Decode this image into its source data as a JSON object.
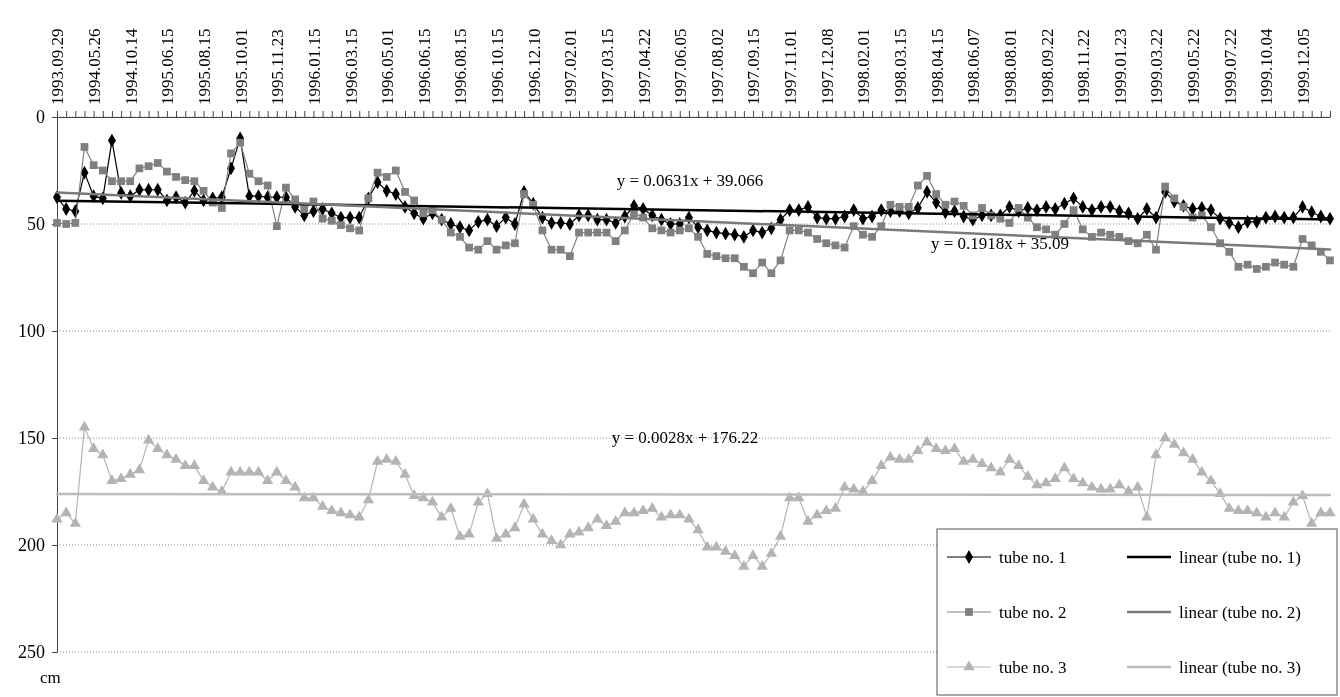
{
  "chart_data": {
    "type": "line",
    "ylabel": "cm",
    "ylim": [
      250,
      0
    ],
    "yticks": [
      0,
      50,
      100,
      150,
      200,
      250
    ],
    "grid": "y",
    "legend": "bottom right",
    "categories": [
      "1993.09.29",
      null,
      null,
      null,
      "1994.05.26",
      null,
      null,
      null,
      "1994.10.14",
      null,
      null,
      null,
      "1995.06.15",
      null,
      null,
      null,
      "1995.08.15",
      null,
      null,
      null,
      "1995.10.01",
      null,
      null,
      null,
      "1995.11.23",
      null,
      null,
      null,
      "1996.01.15",
      null,
      null,
      null,
      "1996.03.15",
      null,
      null,
      null,
      "1996.05.01",
      null,
      null,
      null,
      "1996.06.15",
      null,
      null,
      null,
      "1996.08.15",
      null,
      null,
      null,
      "1996.10.15",
      null,
      null,
      null,
      "1996.12.10",
      null,
      null,
      null,
      "1997.02.01",
      null,
      null,
      null,
      "1997.03.15",
      null,
      null,
      null,
      "1997.04.22",
      null,
      null,
      null,
      "1997.06.05",
      null,
      null,
      null,
      "1997.08.02",
      null,
      null,
      null,
      "1997.09.15",
      null,
      null,
      null,
      "1997.11.01",
      null,
      null,
      null,
      "1997.12.08",
      null,
      null,
      null,
      "1998.02.01",
      null,
      null,
      null,
      "1998.03.15",
      null,
      null,
      null,
      "1998.04.15",
      null,
      null,
      null,
      "1998.06.07",
      null,
      null,
      null,
      "1998.08.01",
      null,
      null,
      null,
      "1998.09.22",
      null,
      null,
      null,
      "1998.11.22",
      null,
      null,
      null,
      "1999.01.23",
      null,
      null,
      null,
      "1999.03.22",
      null,
      null,
      null,
      "1999.05.22",
      null,
      null,
      null,
      "1999.07.22",
      null,
      null,
      null,
      "1999.10.04",
      null,
      null,
      null,
      "1999.12.05",
      null,
      null,
      null
    ],
    "series": [
      {
        "name": "tube no. 1",
        "color": "#000000",
        "marker": "diamond",
        "line_style": "solid",
        "values": [
          37.5,
          43,
          44,
          26,
          37,
          38,
          11,
          35.5,
          37,
          34,
          34,
          34,
          39,
          37.5,
          40,
          34.5,
          39,
          38,
          37.5,
          24,
          10,
          37,
          37,
          37.5,
          37.5,
          37.5,
          42,
          46,
          44,
          43,
          45,
          47,
          47,
          47,
          38,
          30.5,
          34.5,
          36,
          42,
          45,
          47.5,
          45,
          48,
          50,
          51.5,
          53,
          49,
          48,
          51,
          47,
          50,
          35,
          40.5,
          47,
          49.5,
          49.5,
          50,
          46,
          46,
          48,
          48,
          49.5,
          46.5,
          41.5,
          43,
          46,
          48,
          50,
          50,
          47,
          51.5,
          53,
          54,
          54.5,
          55,
          56,
          53,
          54,
          52,
          48,
          43.5,
          43.5,
          42,
          47,
          47.5,
          47.5,
          46.5,
          43.5,
          47.5,
          46.5,
          43.5,
          44,
          44,
          45,
          42.5,
          35,
          40,
          44.5,
          44,
          46.5,
          48,
          46,
          46,
          46,
          42,
          44,
          42.5,
          43.5,
          42,
          43,
          40.5,
          38,
          42,
          43.5,
          42,
          42,
          44,
          45,
          47.5,
          43,
          47,
          35,
          39.5,
          41.5,
          43,
          42.5,
          43.5,
          47.5,
          49.5,
          51.5,
          49,
          49,
          47,
          46.5,
          47,
          47,
          42,
          44.5,
          46.5,
          47.5
        ]
      },
      {
        "name": "tube no. 2",
        "color": "#808080",
        "marker": "square",
        "line_style": "solid",
        "values": [
          49.5,
          50,
          49.5,
          14,
          22.5,
          25,
          30,
          30,
          30,
          24,
          23,
          21.5,
          25.5,
          28,
          29.5,
          30,
          34.5,
          40,
          42.5,
          17,
          12,
          26.5,
          30,
          32,
          51,
          33,
          38.5,
          43,
          39.5,
          47.5,
          48.5,
          50.5,
          52,
          53,
          38,
          26,
          28,
          25,
          35,
          39,
          45,
          43.5,
          48,
          54,
          56,
          61,
          62,
          58,
          62,
          60,
          59,
          36,
          41,
          53,
          62,
          62,
          65,
          54,
          54,
          54,
          54,
          58,
          53,
          45,
          47,
          52,
          53,
          54,
          53,
          52,
          56,
          64,
          65,
          66,
          66,
          70,
          73,
          68,
          73,
          67,
          53,
          53,
          54,
          57,
          59,
          60,
          61,
          51,
          55,
          56,
          51,
          41,
          42,
          42,
          32,
          27.5,
          36,
          41,
          39.5,
          41.5,
          46,
          42.5,
          46,
          47.5,
          49.5,
          42.5,
          47,
          51.5,
          52.5,
          55,
          50,
          43.5,
          52.5,
          56,
          54,
          55,
          56,
          58,
          59,
          55,
          62,
          32.5,
          38,
          42,
          47,
          46,
          51.5,
          59,
          63,
          70,
          69,
          71,
          70,
          68,
          69,
          70,
          57,
          60,
          63,
          67
        ]
      },
      {
        "name": "tube no. 3",
        "color": "#b4b4b4",
        "marker": "triangle",
        "line_style": "solid",
        "values": [
          188,
          185,
          190,
          145,
          155,
          158,
          170,
          169,
          167,
          165,
          151,
          155,
          158,
          160,
          163,
          163,
          170,
          173,
          175,
          166,
          166,
          166,
          166,
          170,
          166,
          170,
          173,
          178,
          178,
          182,
          184,
          185,
          186,
          187,
          179,
          161,
          160,
          161,
          167,
          177,
          178,
          180,
          187,
          183,
          196,
          195,
          180,
          176,
          197,
          195,
          192,
          181,
          188,
          195,
          198,
          200,
          195,
          194,
          192,
          188,
          191,
          189,
          185,
          185,
          184,
          183,
          187,
          186,
          186,
          188,
          193,
          201,
          201,
          203,
          205,
          210,
          205,
          210,
          204,
          196,
          178,
          178,
          189,
          186,
          184,
          183,
          173,
          174,
          175,
          170,
          163,
          159,
          160,
          160,
          156,
          152,
          155,
          156,
          155,
          161,
          160,
          162,
          164,
          166,
          160,
          163,
          168,
          172,
          171,
          169,
          164,
          169,
          171,
          173,
          174,
          174,
          172,
          175,
          173,
          187,
          158,
          150,
          153,
          157,
          160,
          166,
          170,
          176,
          183,
          184,
          184,
          185,
          187,
          185,
          187,
          180,
          177,
          190,
          185,
          185
        ]
      },
      {
        "name": "linear (tube no. 1)",
        "color": "#000000",
        "marker": "none",
        "line_style": "solid",
        "values": [
          39.1,
          null,
          null,
          null,
          null,
          null,
          null,
          null,
          null,
          null,
          null,
          null,
          null,
          null,
          null,
          null,
          null,
          null,
          null,
          null,
          null,
          null,
          null,
          null,
          null,
          null,
          null,
          null,
          null,
          null,
          null,
          null,
          null,
          null,
          null,
          null,
          null,
          null,
          null,
          null,
          null,
          null,
          null,
          null,
          null,
          null,
          null,
          null,
          null,
          null,
          null,
          null,
          null,
          null,
          null,
          null,
          null,
          null,
          null,
          null,
          null,
          null,
          null,
          null,
          null,
          null,
          null,
          null,
          null,
          null,
          null,
          null,
          null,
          null,
          null,
          null,
          null,
          null,
          null,
          null,
          null,
          null,
          null,
          null,
          null,
          null,
          null,
          null,
          null,
          null,
          null,
          null,
          null,
          null,
          null,
          null,
          null,
          null,
          null,
          null,
          null,
          null,
          null,
          null,
          null,
          null,
          null,
          null,
          null,
          null,
          null,
          null,
          null,
          null,
          null,
          null,
          null,
          null,
          null,
          null,
          null,
          null,
          null,
          null,
          null,
          null,
          null,
          null,
          null,
          null,
          null,
          null,
          null,
          null,
          null,
          null,
          null,
          null,
          null,
          47.9
        ]
      },
      {
        "name": "linear (tube no. 2)",
        "color": "#7a7a7a",
        "marker": "none",
        "line_style": "solid",
        "values": [
          35.3,
          null,
          null,
          null,
          null,
          null,
          null,
          null,
          null,
          null,
          null,
          null,
          null,
          null,
          null,
          null,
          null,
          null,
          null,
          null,
          null,
          null,
          null,
          null,
          null,
          null,
          null,
          null,
          null,
          null,
          null,
          null,
          null,
          null,
          null,
          null,
          null,
          null,
          null,
          null,
          null,
          null,
          null,
          null,
          null,
          null,
          null,
          null,
          null,
          null,
          null,
          null,
          null,
          null,
          null,
          null,
          null,
          null,
          null,
          null,
          null,
          null,
          null,
          null,
          null,
          null,
          null,
          null,
          null,
          null,
          null,
          null,
          null,
          null,
          null,
          null,
          null,
          null,
          null,
          null,
          null,
          null,
          null,
          null,
          null,
          null,
          null,
          null,
          null,
          null,
          null,
          null,
          null,
          null,
          null,
          null,
          null,
          null,
          null,
          null,
          null,
          null,
          null,
          null,
          null,
          null,
          null,
          null,
          null,
          null,
          null,
          null,
          null,
          null,
          null,
          null,
          null,
          null,
          null,
          null,
          null,
          null,
          null,
          null,
          null,
          null,
          null,
          null,
          null,
          null,
          null,
          null,
          null,
          null,
          null,
          null,
          null,
          null,
          null,
          61.9
        ]
      },
      {
        "name": "linear (tube no. 3)",
        "color": "#bdbdbd",
        "marker": "none",
        "line_style": "solid",
        "values": [
          176.2,
          null,
          null,
          null,
          null,
          null,
          null,
          null,
          null,
          null,
          null,
          null,
          null,
          null,
          null,
          null,
          null,
          null,
          null,
          null,
          null,
          null,
          null,
          null,
          null,
          null,
          null,
          null,
          null,
          null,
          null,
          null,
          null,
          null,
          null,
          null,
          null,
          null,
          null,
          null,
          null,
          null,
          null,
          null,
          null,
          null,
          null,
          null,
          null,
          null,
          null,
          null,
          null,
          null,
          null,
          null,
          null,
          null,
          null,
          null,
          null,
          null,
          null,
          null,
          null,
          null,
          null,
          null,
          null,
          null,
          null,
          null,
          null,
          null,
          null,
          null,
          null,
          null,
          null,
          null,
          null,
          null,
          null,
          null,
          null,
          null,
          null,
          null,
          null,
          null,
          null,
          null,
          null,
          null,
          null,
          null,
          null,
          null,
          null,
          null,
          null,
          null,
          null,
          null,
          null,
          null,
          null,
          null,
          null,
          null,
          null,
          null,
          null,
          null,
          null,
          null,
          null,
          null,
          null,
          null,
          null,
          null,
          null,
          null,
          null,
          null,
          null,
          null,
          null,
          null,
          null,
          null,
          null,
          null,
          null,
          null,
          null,
          null,
          null,
          176.6
        ]
      }
    ],
    "annotations": [
      "y = 0.0631x + 39.066",
      "y = 0.1918x + 35.09",
      "y = 0.0028x + 176.22"
    ]
  }
}
